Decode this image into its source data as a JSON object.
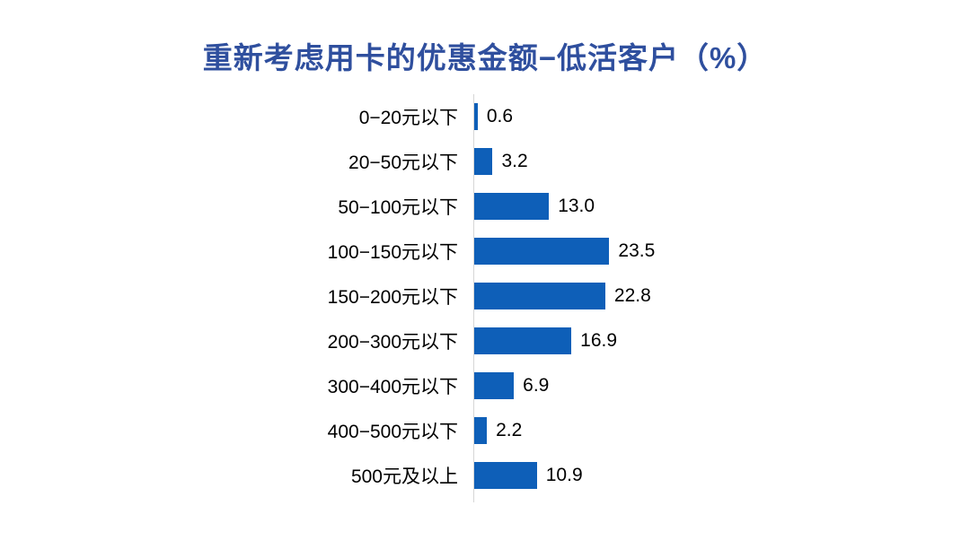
{
  "chart_data": {
    "type": "bar",
    "orientation": "horizontal",
    "title": "重新考虑用卡的优惠金额−低活客户（%）",
    "categories": [
      "0−20元以下",
      "20−50元以下",
      "50−100元以下",
      "100−150元以下",
      "150−200元以下",
      "200−300元以下",
      "300−400元以下",
      "400−500元以下",
      "500元及以上"
    ],
    "values": [
      0.6,
      3.2,
      13.0,
      23.5,
      22.8,
      16.9,
      6.9,
      2.2,
      10.9
    ],
    "value_labels": [
      "0.6",
      "3.2",
      "13.0",
      "23.5",
      "22.8",
      "16.9",
      "6.9",
      "2.2",
      "10.9"
    ],
    "xlabel": "",
    "ylabel": "",
    "xlim": [
      0,
      25
    ],
    "grid": false,
    "legend_position": "none",
    "bar_color": "#0E5FB8",
    "title_color": "#2F4F9E",
    "axis_line_color": "#D6D6D6",
    "label_color": "#000000"
  }
}
